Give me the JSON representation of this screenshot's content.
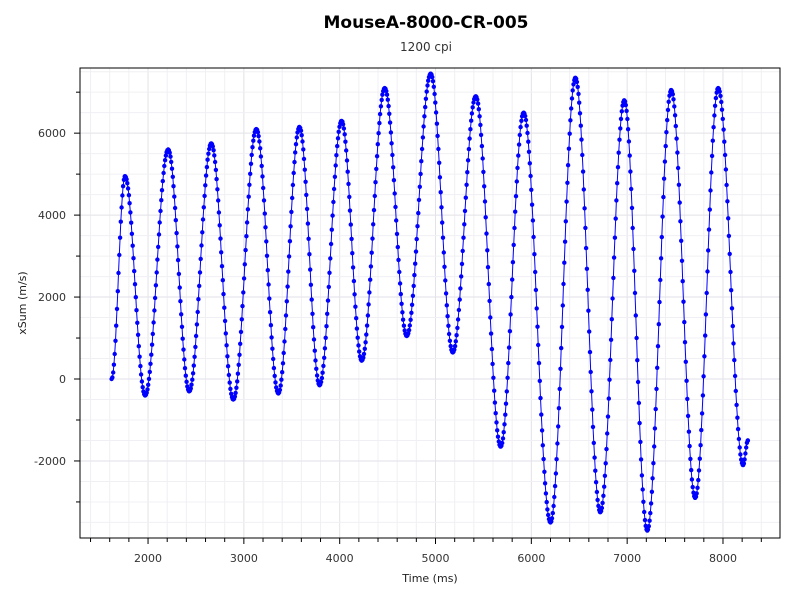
{
  "chart_data": {
    "type": "scatter",
    "title": "MouseA-8000-CR-005",
    "subtitle": "1200 cpi",
    "xlabel": "Time (ms)",
    "ylabel": "xSum (m/s)",
    "xlim": [
      1290,
      8595
    ],
    "ylim": [
      -3880,
      7590
    ],
    "xticks": [
      2000,
      3000,
      4000,
      5000,
      6000,
      7000,
      8000
    ],
    "yticks": [
      -2000,
      0,
      2000,
      4000,
      6000
    ],
    "x_minor_step": 200,
    "y_minor_step": 1000,
    "grid": true,
    "sample_interval_ms": 8,
    "series": [
      {
        "name": "xSum",
        "color": "#0000ff",
        "extrema": [
          [
            1620,
            0
          ],
          [
            1760,
            4950
          ],
          [
            1970,
            -400
          ],
          [
            2210,
            5600
          ],
          [
            2430,
            -300
          ],
          [
            2660,
            5750
          ],
          [
            2890,
            -500
          ],
          [
            3130,
            6100
          ],
          [
            3360,
            -350
          ],
          [
            3580,
            6150
          ],
          [
            3790,
            -150
          ],
          [
            4020,
            6300
          ],
          [
            4230,
            450
          ],
          [
            4470,
            7100
          ],
          [
            4700,
            1050
          ],
          [
            4950,
            7450
          ],
          [
            5180,
            650
          ],
          [
            5420,
            6900
          ],
          [
            5680,
            -1650
          ],
          [
            5920,
            6500
          ],
          [
            6200,
            -3500
          ],
          [
            6460,
            7350
          ],
          [
            6720,
            -3250
          ],
          [
            6970,
            6800
          ],
          [
            7210,
            -3700
          ],
          [
            7460,
            7050
          ],
          [
            7710,
            -2900
          ],
          [
            7950,
            7100
          ],
          [
            8210,
            -2100
          ],
          [
            8260,
            -1500
          ]
        ]
      }
    ]
  }
}
